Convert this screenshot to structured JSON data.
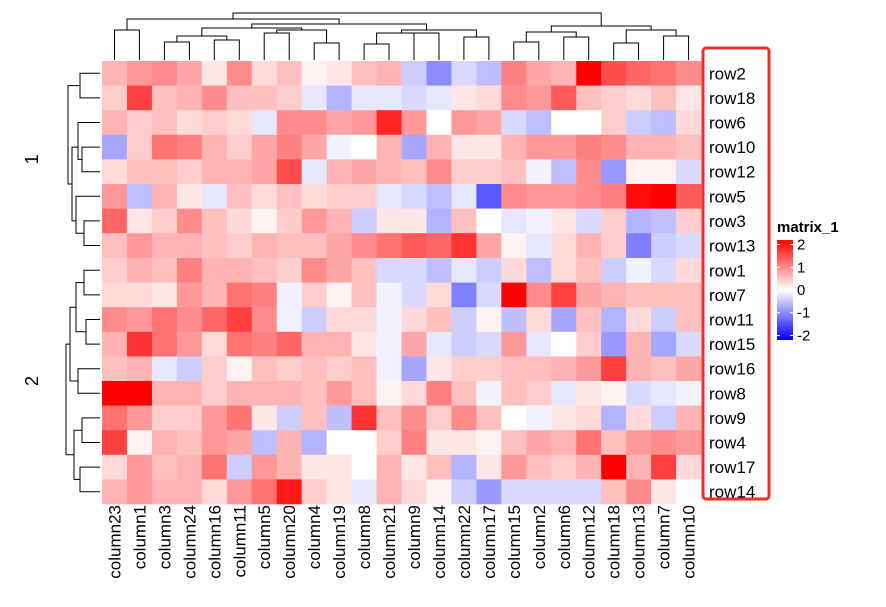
{
  "chart_data": {
    "type": "heatmap",
    "title": "",
    "xlabel": "",
    "ylabel": "",
    "columns": [
      "column23",
      "column1",
      "column3",
      "column24",
      "column16",
      "column11",
      "column5",
      "column20",
      "column4",
      "column19",
      "column8",
      "column21",
      "column9",
      "column14",
      "column22",
      "column17",
      "column15",
      "column2",
      "column6",
      "column12",
      "column18",
      "column13",
      "column7",
      "column10"
    ],
    "row_splits": [
      {
        "label": "1",
        "rows": [
          "row2",
          "row18",
          "row6",
          "row10",
          "row12",
          "row5",
          "row3",
          "row13"
        ]
      },
      {
        "label": "2",
        "rows": [
          "row1",
          "row7",
          "row11",
          "row15",
          "row16",
          "row8",
          "row9",
          "row4",
          "row17",
          "row14"
        ]
      }
    ],
    "values": [
      [
        0.6,
        0.8,
        0.9,
        0.7,
        0.2,
        0.9,
        0.3,
        0.5,
        0.1,
        0.2,
        0.5,
        0.6,
        -0.4,
        -0.9,
        -0.3,
        -0.5,
        1.0,
        0.7,
        0.6,
        2.3,
        1.4,
        1.2,
        1.1,
        0.9
      ],
      [
        0.4,
        1.5,
        0.5,
        0.6,
        0.9,
        0.5,
        0.5,
        0.4,
        -0.2,
        -0.6,
        -0.2,
        -0.2,
        -0.3,
        -0.2,
        0.2,
        0.3,
        0.9,
        0.8,
        1.3,
        0.5,
        0.4,
        0.3,
        0.5,
        0.2
      ],
      [
        0.6,
        0.4,
        0.5,
        0.3,
        0.4,
        0.3,
        -0.2,
        0.9,
        0.9,
        0.7,
        0.8,
        1.7,
        0.8,
        0.0,
        0.8,
        0.7,
        -0.3,
        -0.5,
        0.0,
        0.0,
        0.4,
        -0.4,
        -0.5,
        0.3
      ],
      [
        -0.7,
        0.4,
        1.1,
        1.0,
        0.6,
        0.4,
        0.7,
        1.0,
        0.7,
        -0.1,
        0.0,
        0.6,
        -0.7,
        0.6,
        0.2,
        0.2,
        0.6,
        0.8,
        0.8,
        1.0,
        0.9,
        0.6,
        0.6,
        0.5
      ],
      [
        0.3,
        0.5,
        0.5,
        0.4,
        0.6,
        0.6,
        0.7,
        1.4,
        -0.2,
        0.6,
        0.7,
        0.6,
        0.5,
        0.9,
        0.4,
        0.4,
        0.5,
        -0.1,
        -0.5,
        0.9,
        -0.8,
        0.1,
        0.1,
        -0.3
      ],
      [
        0.8,
        -0.5,
        0.6,
        0.2,
        -0.2,
        0.5,
        0.3,
        0.5,
        0.3,
        0.4,
        0.4,
        -0.2,
        -0.3,
        -0.5,
        -0.2,
        -1.3,
        0.9,
        0.8,
        0.8,
        0.9,
        1.0,
        1.9,
        2.0,
        1.3
      ],
      [
        1.2,
        0.2,
        0.4,
        0.9,
        0.5,
        0.3,
        0.1,
        0.4,
        0.8,
        0.6,
        -0.4,
        0.2,
        0.2,
        -0.6,
        0.5,
        0.0,
        -0.2,
        -0.1,
        0.2,
        -0.3,
        0.4,
        -0.6,
        -0.5,
        0.4
      ],
      [
        0.5,
        0.8,
        0.6,
        0.6,
        0.5,
        0.4,
        0.6,
        0.5,
        0.5,
        0.7,
        0.9,
        1.1,
        1.3,
        1.2,
        1.6,
        0.7,
        0.1,
        -0.2,
        0.3,
        0.6,
        0.4,
        -1.0,
        -0.4,
        -0.3
      ],
      [
        0.4,
        0.6,
        0.5,
        1.0,
        0.6,
        0.6,
        0.5,
        0.4,
        0.9,
        0.7,
        0.5,
        -0.3,
        -0.3,
        -0.5,
        -0.2,
        -0.4,
        0.3,
        -0.5,
        0.3,
        0.5,
        -0.4,
        -0.1,
        -0.3,
        0.3
      ],
      [
        0.3,
        0.3,
        0.2,
        0.8,
        0.6,
        1.1,
        1.0,
        -0.1,
        0.4,
        0.1,
        0.5,
        -0.1,
        -0.3,
        0.3,
        -1.0,
        -0.3,
        2.2,
        0.9,
        1.5,
        0.7,
        0.6,
        0.5,
        0.5,
        0.5
      ],
      [
        0.9,
        0.8,
        1.1,
        0.9,
        1.2,
        1.5,
        0.9,
        -0.1,
        -0.4,
        0.3,
        0.3,
        -0.1,
        0.3,
        0.5,
        -0.4,
        0.1,
        -0.5,
        0.3,
        -0.7,
        0.5,
        -0.6,
        0.3,
        -0.4,
        0.5
      ],
      [
        0.6,
        1.6,
        1.1,
        0.8,
        0.3,
        1.1,
        1.0,
        1.2,
        0.6,
        0.6,
        0.2,
        -0.1,
        0.7,
        -0.2,
        -0.4,
        -0.3,
        0.8,
        -0.2,
        0.0,
        0.4,
        -0.8,
        0.6,
        -0.7,
        -0.3
      ],
      [
        0.5,
        0.6,
        -0.2,
        -0.4,
        0.4,
        0.1,
        0.5,
        0.4,
        0.5,
        0.4,
        0.5,
        -0.1,
        -0.7,
        0.2,
        0.4,
        0.4,
        0.5,
        0.5,
        0.6,
        0.8,
        1.5,
        0.6,
        0.5,
        0.7
      ],
      [
        2.0,
        2.2,
        0.6,
        0.6,
        0.4,
        0.6,
        0.6,
        0.6,
        0.5,
        0.8,
        0.5,
        0.1,
        0.3,
        1.0,
        0.5,
        -0.1,
        0.5,
        0.4,
        -0.2,
        0.2,
        0.1,
        -0.3,
        -0.2,
        -0.1
      ],
      [
        1.1,
        0.8,
        0.4,
        0.4,
        0.8,
        1.1,
        0.2,
        -0.4,
        0.5,
        -0.5,
        1.6,
        0.5,
        0.9,
        0.4,
        0.9,
        0.5,
        0.0,
        -0.1,
        0.2,
        0.3,
        -0.6,
        0.3,
        -0.4,
        0.6
      ],
      [
        1.5,
        0.1,
        0.6,
        0.5,
        0.8,
        0.7,
        -0.5,
        0.6,
        -0.6,
        0.0,
        0.0,
        0.4,
        1.0,
        0.2,
        0.2,
        0.1,
        0.5,
        0.7,
        0.6,
        1.1,
        0.5,
        0.8,
        0.9,
        0.8
      ],
      [
        0.3,
        0.8,
        0.5,
        0.6,
        1.1,
        -0.4,
        0.8,
        0.6,
        0.2,
        0.2,
        0.0,
        0.6,
        0.2,
        0.5,
        -0.6,
        0.2,
        0.8,
        0.5,
        0.4,
        0.6,
        2.3,
        0.6,
        1.5,
        0.3
      ],
      [
        0.6,
        0.8,
        0.6,
        0.6,
        0.3,
        0.8,
        1.1,
        1.8,
        0.4,
        0.2,
        -0.2,
        0.6,
        0.3,
        0.1,
        -0.4,
        -0.8,
        -0.3,
        -0.3,
        -0.3,
        -0.3,
        0.5,
        0.9,
        0.2,
        0.0
      ]
    ],
    "legend": {
      "title": "matrix_1",
      "ticks": [
        "2",
        "1",
        "0",
        "-1",
        "-2"
      ],
      "tick_values": [
        2,
        1,
        0,
        -1,
        -2
      ],
      "colors": {
        "low": "#0000FF",
        "mid": "#FFFFFF",
        "high": "#FF0000"
      },
      "placement": "right"
    },
    "highlight_color": "#E8312A",
    "dendrogram": {
      "rows": "left, split into 2 groups",
      "columns": "top"
    }
  }
}
